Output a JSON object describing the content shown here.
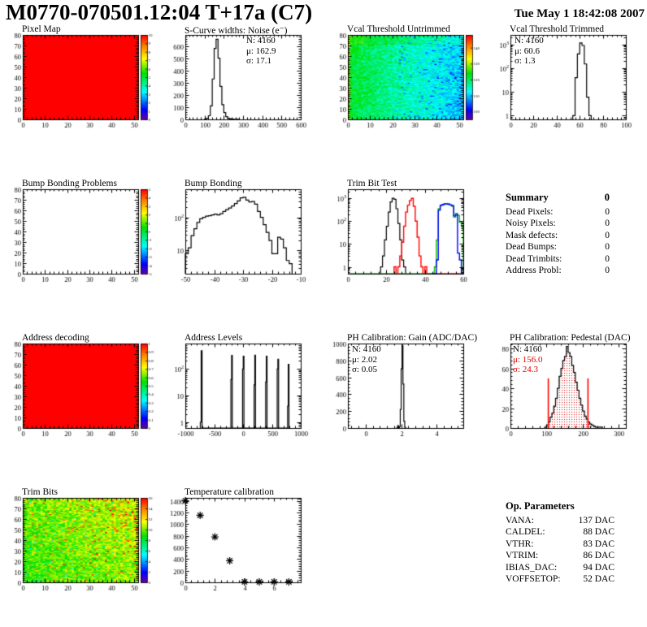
{
  "header": {
    "title": "M0770-070501.12:04 T+17a (C7)",
    "datetime": "Tue May  1 18:42:08 2007"
  },
  "summary": {
    "title": "Summary",
    "value": "0",
    "rows": [
      {
        "label": "Dead Pixels:",
        "value": "0"
      },
      {
        "label": "Noisy Pixels:",
        "value": "0"
      },
      {
        "label": "Mask defects:",
        "value": "0"
      },
      {
        "label": "Dead Bumps:",
        "value": "0"
      },
      {
        "label": "Dead Trimbits:",
        "value": "0"
      },
      {
        "label": "Address Probl:",
        "value": "0"
      }
    ]
  },
  "op_parameters": {
    "title": "Op. Parameters",
    "rows": [
      {
        "label": "VANA:",
        "value": "137 DAC"
      },
      {
        "label": "CALDEL:",
        "value": "88 DAC"
      },
      {
        "label": "VTHR:",
        "value": "83 DAC"
      },
      {
        "label": "VTRIM:",
        "value": "86 DAC"
      },
      {
        "label": "IBIAS_DAC:",
        "value": "94 DAC"
      },
      {
        "label": "VOFFSETOP:",
        "value": "52 DAC"
      }
    ]
  },
  "stats": {
    "scurve": {
      "n": "N: 4160",
      "mu": "μ: 162.9",
      "sigma": "σ: 17.1"
    },
    "vcal_trimmed": {
      "n": "N: 4160",
      "mu": "μ: 60.6",
      "sigma": "σ: 1.3"
    },
    "ph_gain": {
      "n": "N: 4160",
      "mu": "μ: 2.02",
      "sigma": "σ: 0.05"
    },
    "ph_pedestal": {
      "n": "N: 4160",
      "mu": "μ: 156.0",
      "sigma": "σ: 24.3"
    }
  },
  "colors": {
    "accent_red": "#ff0000",
    "hist_black": "#000000",
    "hist_red": "#ff0000",
    "hist_green": "#00bf00",
    "hist_blue": "#0000ff",
    "stats_red": "#e00000"
  },
  "chart_data": [
    {
      "id": "pixel_map",
      "type": "heatmap",
      "title": "Pixel Map",
      "x": {
        "min": 0,
        "max": 52,
        "step": 10
      },
      "y": {
        "min": 0,
        "max": 80,
        "step": 10
      },
      "z": {
        "min": 0,
        "max": 10,
        "step": 1
      },
      "fill": "solid",
      "value": 10
    },
    {
      "id": "scurve",
      "type": "hist",
      "title": "S-Curve widths: Noise (e⁻)",
      "x": {
        "min": 0,
        "max": 600,
        "step": 100
      },
      "y": {
        "scale": "lin",
        "min": 0,
        "max": 690,
        "step": 100
      },
      "series": [
        {
          "color": "#000000",
          "binw": 10,
          "start": 100,
          "values": [
            3,
            10,
            30,
            110,
            330,
            580,
            655,
            500,
            270,
            120,
            55,
            22,
            9,
            4,
            2,
            1,
            1,
            1
          ]
        }
      ]
    },
    {
      "id": "vcal_untrimmed",
      "type": "heatmap",
      "title": "Vcal Threshold Untrimmed",
      "x": {
        "min": 0,
        "max": 52,
        "step": 10
      },
      "y": {
        "min": 0,
        "max": 80,
        "step": 10
      },
      "z": {
        "min": 95,
        "max": 148,
        "step": 10
      },
      "fill": "noise",
      "noise": {
        "kind": "vcal",
        "base": 110,
        "slope": 12,
        "rand": 8,
        "seed": 7
      }
    },
    {
      "id": "vcal_trimmed",
      "type": "hist",
      "title": "Vcal Threshold Trimmed",
      "x": {
        "min": 0,
        "max": 100,
        "step": 20
      },
      "y": {
        "scale": "log",
        "min": 0.7,
        "max": 2500
      },
      "series": [
        {
          "color": "#000000",
          "binw": 2,
          "start": 54,
          "values": [
            1,
            40,
            400,
            1150,
            900,
            150,
            6,
            1
          ]
        }
      ]
    },
    {
      "id": "bb_problems",
      "type": "heatmap",
      "title": "Bump Bonding Problems",
      "x": {
        "min": 0,
        "max": 52,
        "step": 10
      },
      "y": {
        "min": 0,
        "max": 80,
        "step": 10
      },
      "z": {
        "min": -5,
        "max": 5,
        "step": 1
      },
      "fill": "none"
    },
    {
      "id": "bump_bonding",
      "type": "hist",
      "title": "Bump Bonding",
      "x": {
        "min": -50,
        "max": -10,
        "step": 10
      },
      "y": {
        "scale": "log",
        "min": 2,
        "max": 700
      },
      "series": [
        {
          "color": "#000000",
          "binw": 1,
          "start": -50,
          "values": [
            8,
            12,
            28,
            45,
            70,
            90,
            100,
            108,
            112,
            118,
            125,
            118,
            128,
            150,
            170,
            190,
            220,
            260,
            310,
            385,
            400,
            330,
            290,
            300,
            250,
            150,
            100,
            60,
            35,
            20,
            8,
            8,
            25,
            22,
            12,
            5,
            4
          ]
        }
      ]
    },
    {
      "id": "trim_bit_test",
      "type": "hist",
      "title": "Trim Bit Test",
      "x": {
        "min": 0,
        "max": 60,
        "step": 20
      },
      "y": {
        "scale": "log",
        "min": 0.5,
        "max": 2500
      },
      "series": [
        {
          "color": "#000000",
          "binw": 1,
          "start": 17,
          "values": [
            1,
            3,
            15,
            60,
            250,
            700,
            1000,
            900,
            350,
            80,
            15,
            2,
            1
          ]
        },
        {
          "color": "#ff0000",
          "binw": 1,
          "start": 24,
          "values": [
            1,
            0,
            1,
            3,
            12,
            60,
            250,
            500,
            800,
            1000,
            450,
            100,
            20,
            3,
            1,
            0,
            1,
            0,
            0,
            0,
            0,
            0,
            0,
            0,
            0,
            0,
            0,
            0,
            0,
            0,
            0,
            0,
            0,
            0,
            0,
            0
          ]
        },
        {
          "color": "#00bf00",
          "binw": 1,
          "start": 0,
          "values": [
            0,
            0,
            0,
            0,
            0,
            0,
            0,
            0,
            0,
            0,
            0,
            0,
            0,
            0,
            0,
            0,
            0,
            0,
            0,
            0,
            0,
            0,
            0,
            0,
            0,
            0,
            0,
            0,
            0,
            0,
            0,
            0,
            0,
            0,
            0,
            0,
            0,
            0,
            0,
            0,
            0,
            0,
            0,
            0,
            0,
            1,
            15,
            350,
            480,
            520,
            550,
            560,
            540,
            500,
            450,
            150,
            220,
            180,
            90,
            60
          ]
        },
        {
          "color": "#0000ff",
          "binw": 1,
          "start": 44,
          "values": [
            0,
            0,
            2,
            300,
            500,
            540,
            570,
            580,
            560,
            520,
            480,
            170,
            190,
            4,
            2,
            0
          ]
        }
      ]
    },
    {
      "id": "address_decoding",
      "type": "heatmap",
      "title": "Address decoding",
      "x": {
        "min": 0,
        "max": 52,
        "step": 10
      },
      "y": {
        "min": 0,
        "max": 80,
        "step": 10
      },
      "z": {
        "min": 0,
        "max": 1,
        "step": 0.1
      },
      "fill": "solid",
      "value": 1
    },
    {
      "id": "address_levels",
      "type": "hist",
      "title": "Address Levels",
      "x": {
        "min": -1000,
        "max": 1000,
        "step": 500
      },
      "y": {
        "scale": "log",
        "min": 0.6,
        "max": 900
      },
      "series": [
        {
          "color": "#000000",
          "bins": [
            [
              -740,
              15,
              1
            ],
            [
              -725,
              15,
              480
            ],
            [
              -210,
              12,
              40
            ],
            [
              -198,
              12,
              320
            ],
            [
              -8,
              12,
              100
            ],
            [
              4,
              12,
              300
            ],
            [
              192,
              12,
              25
            ],
            [
              204,
              12,
              330
            ],
            [
              392,
              12,
              32
            ],
            [
              404,
              12,
              300
            ],
            [
              592,
              12,
              100
            ],
            [
              604,
              12,
              230
            ],
            [
              772,
              12,
              4
            ],
            [
              784,
              12,
              150
            ]
          ]
        }
      ]
    },
    {
      "id": "ph_gain",
      "type": "hist",
      "title": "PH Calibration: Gain (ADC/DAC)",
      "x": {
        "min": -1,
        "max": 5.5,
        "step": 2
      },
      "y": {
        "scale": "lin",
        "min": 0,
        "max": 1000,
        "step": 200
      },
      "series": [
        {
          "color": "#000000",
          "binw": 0.05,
          "start": 1.75,
          "values": [
            2,
            28,
            6,
            15,
            220,
            700,
            980,
            520,
            80,
            8
          ]
        }
      ]
    },
    {
      "id": "ph_pedestal",
      "type": "hist",
      "title": "PH Calibration: Pedestal (DAC)",
      "x": {
        "min": 0,
        "max": 320,
        "step": 100
      },
      "y": {
        "scale": "lin",
        "min": 0,
        "max": 85,
        "step": 20
      },
      "series": [
        {
          "color": "#000000",
          "fill": "dots",
          "binw": 5,
          "start": 95,
          "values": [
            1,
            3,
            6,
            11,
            15,
            22,
            30,
            40,
            52,
            60,
            68,
            72,
            82,
            76,
            72,
            63,
            56,
            46,
            38,
            30,
            23,
            17,
            12,
            9,
            6,
            4,
            3,
            2,
            1,
            1,
            1,
            1
          ]
        }
      ],
      "vlines": [
        {
          "x": 105,
          "y": 50,
          "color": "#ff0000"
        },
        {
          "x": 215,
          "y": 50,
          "color": "#ff0000"
        }
      ]
    },
    {
      "id": "trim_bits",
      "type": "heatmap",
      "title": "Trim Bits",
      "x": {
        "min": 0,
        "max": 52,
        "step": 10
      },
      "y": {
        "min": 0,
        "max": 80,
        "step": 10
      },
      "z": {
        "min": 0,
        "max": 16,
        "step": 2
      },
      "fill": "noise",
      "noise": {
        "kind": "trimbits",
        "base": 9.2,
        "rand": 2.6,
        "seed": 13
      }
    },
    {
      "id": "temperature",
      "type": "scatter",
      "title": "Temperature calibration",
      "x": {
        "min": 0,
        "max": 7.8,
        "step": 2
      },
      "y": {
        "scale": "lin",
        "min": 0,
        "max": 1450,
        "step": 200
      },
      "points": [
        [
          0,
          1400
        ],
        [
          1,
          1150
        ],
        [
          2,
          780
        ],
        [
          3,
          370
        ],
        [
          4,
          8
        ],
        [
          5,
          8
        ],
        [
          6,
          8
        ],
        [
          7,
          8
        ]
      ]
    }
  ]
}
